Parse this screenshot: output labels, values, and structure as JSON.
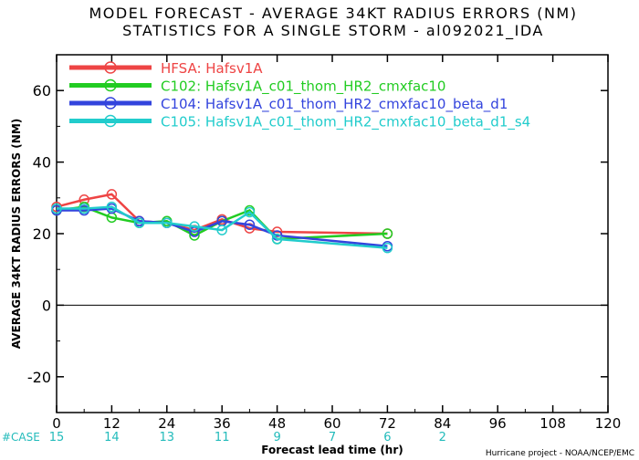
{
  "title": {
    "line1": "MODEL FORECAST - AVERAGE 34KT RADIUS ERRORS (NM)",
    "line2": "STATISTICS FOR A SINGLE STORM - al092021_IDA"
  },
  "footer": {
    "case_label": "#CASE",
    "credit": "Hurricane project - NOAA/NCEP/EMC"
  },
  "chart_data": {
    "type": "line",
    "title": "MODEL FORECAST - AVERAGE 34KT RADIUS ERRORS (NM)",
    "subtitle": "STATISTICS FOR A SINGLE STORM - al092021_IDA",
    "xlabel": "Forecast lead time (hr)",
    "ylabel": "AVERAGE 34KT RADIUS ERRORS (NM)",
    "xlim": [
      0,
      120
    ],
    "ylim": [
      -30,
      70
    ],
    "x_ticks": [
      0,
      12,
      24,
      36,
      48,
      60,
      72,
      84,
      96,
      108,
      120
    ],
    "y_ticks": [
      -20,
      0,
      20,
      40,
      60
    ],
    "grid": false,
    "legend": "top-left",
    "x": [
      0,
      6,
      12,
      18,
      24,
      30,
      36,
      42,
      48,
      72
    ],
    "series": [
      {
        "name": "HFSA: Hafsv1A",
        "color": "#ee4444",
        "values": [
          27.5,
          29.5,
          31,
          23.5,
          23,
          21,
          24,
          21.5,
          20.5,
          20
        ]
      },
      {
        "name": "C102: Hafsv1A_c01_thom_HR2_cmxfac10",
        "color": "#22cc22",
        "values": [
          26.5,
          27.5,
          24.5,
          23,
          23.5,
          19.5,
          23.5,
          26.5,
          18.5,
          20
        ]
      },
      {
        "name": "C104: Hafsv1A_c01_thom_HR2_cmxfac10_beta_d1",
        "color": "#3344dd",
        "values": [
          26.5,
          26.5,
          27,
          23.5,
          23,
          20.5,
          23.5,
          22.5,
          19.5,
          16.5
        ]
      },
      {
        "name": "C105: Hafsv1A_c01_thom_HR2_cmxfac10_beta_d1_s4",
        "color": "#22cccc",
        "values": [
          27,
          27,
          27.5,
          23,
          23,
          22,
          21,
          26,
          18.5,
          16
        ]
      }
    ],
    "cases": {
      "x": [
        0,
        12,
        24,
        36,
        48,
        60,
        72,
        84
      ],
      "values": [
        "15",
        "14",
        "13",
        "11",
        "9",
        "7",
        "6",
        "2"
      ]
    }
  }
}
